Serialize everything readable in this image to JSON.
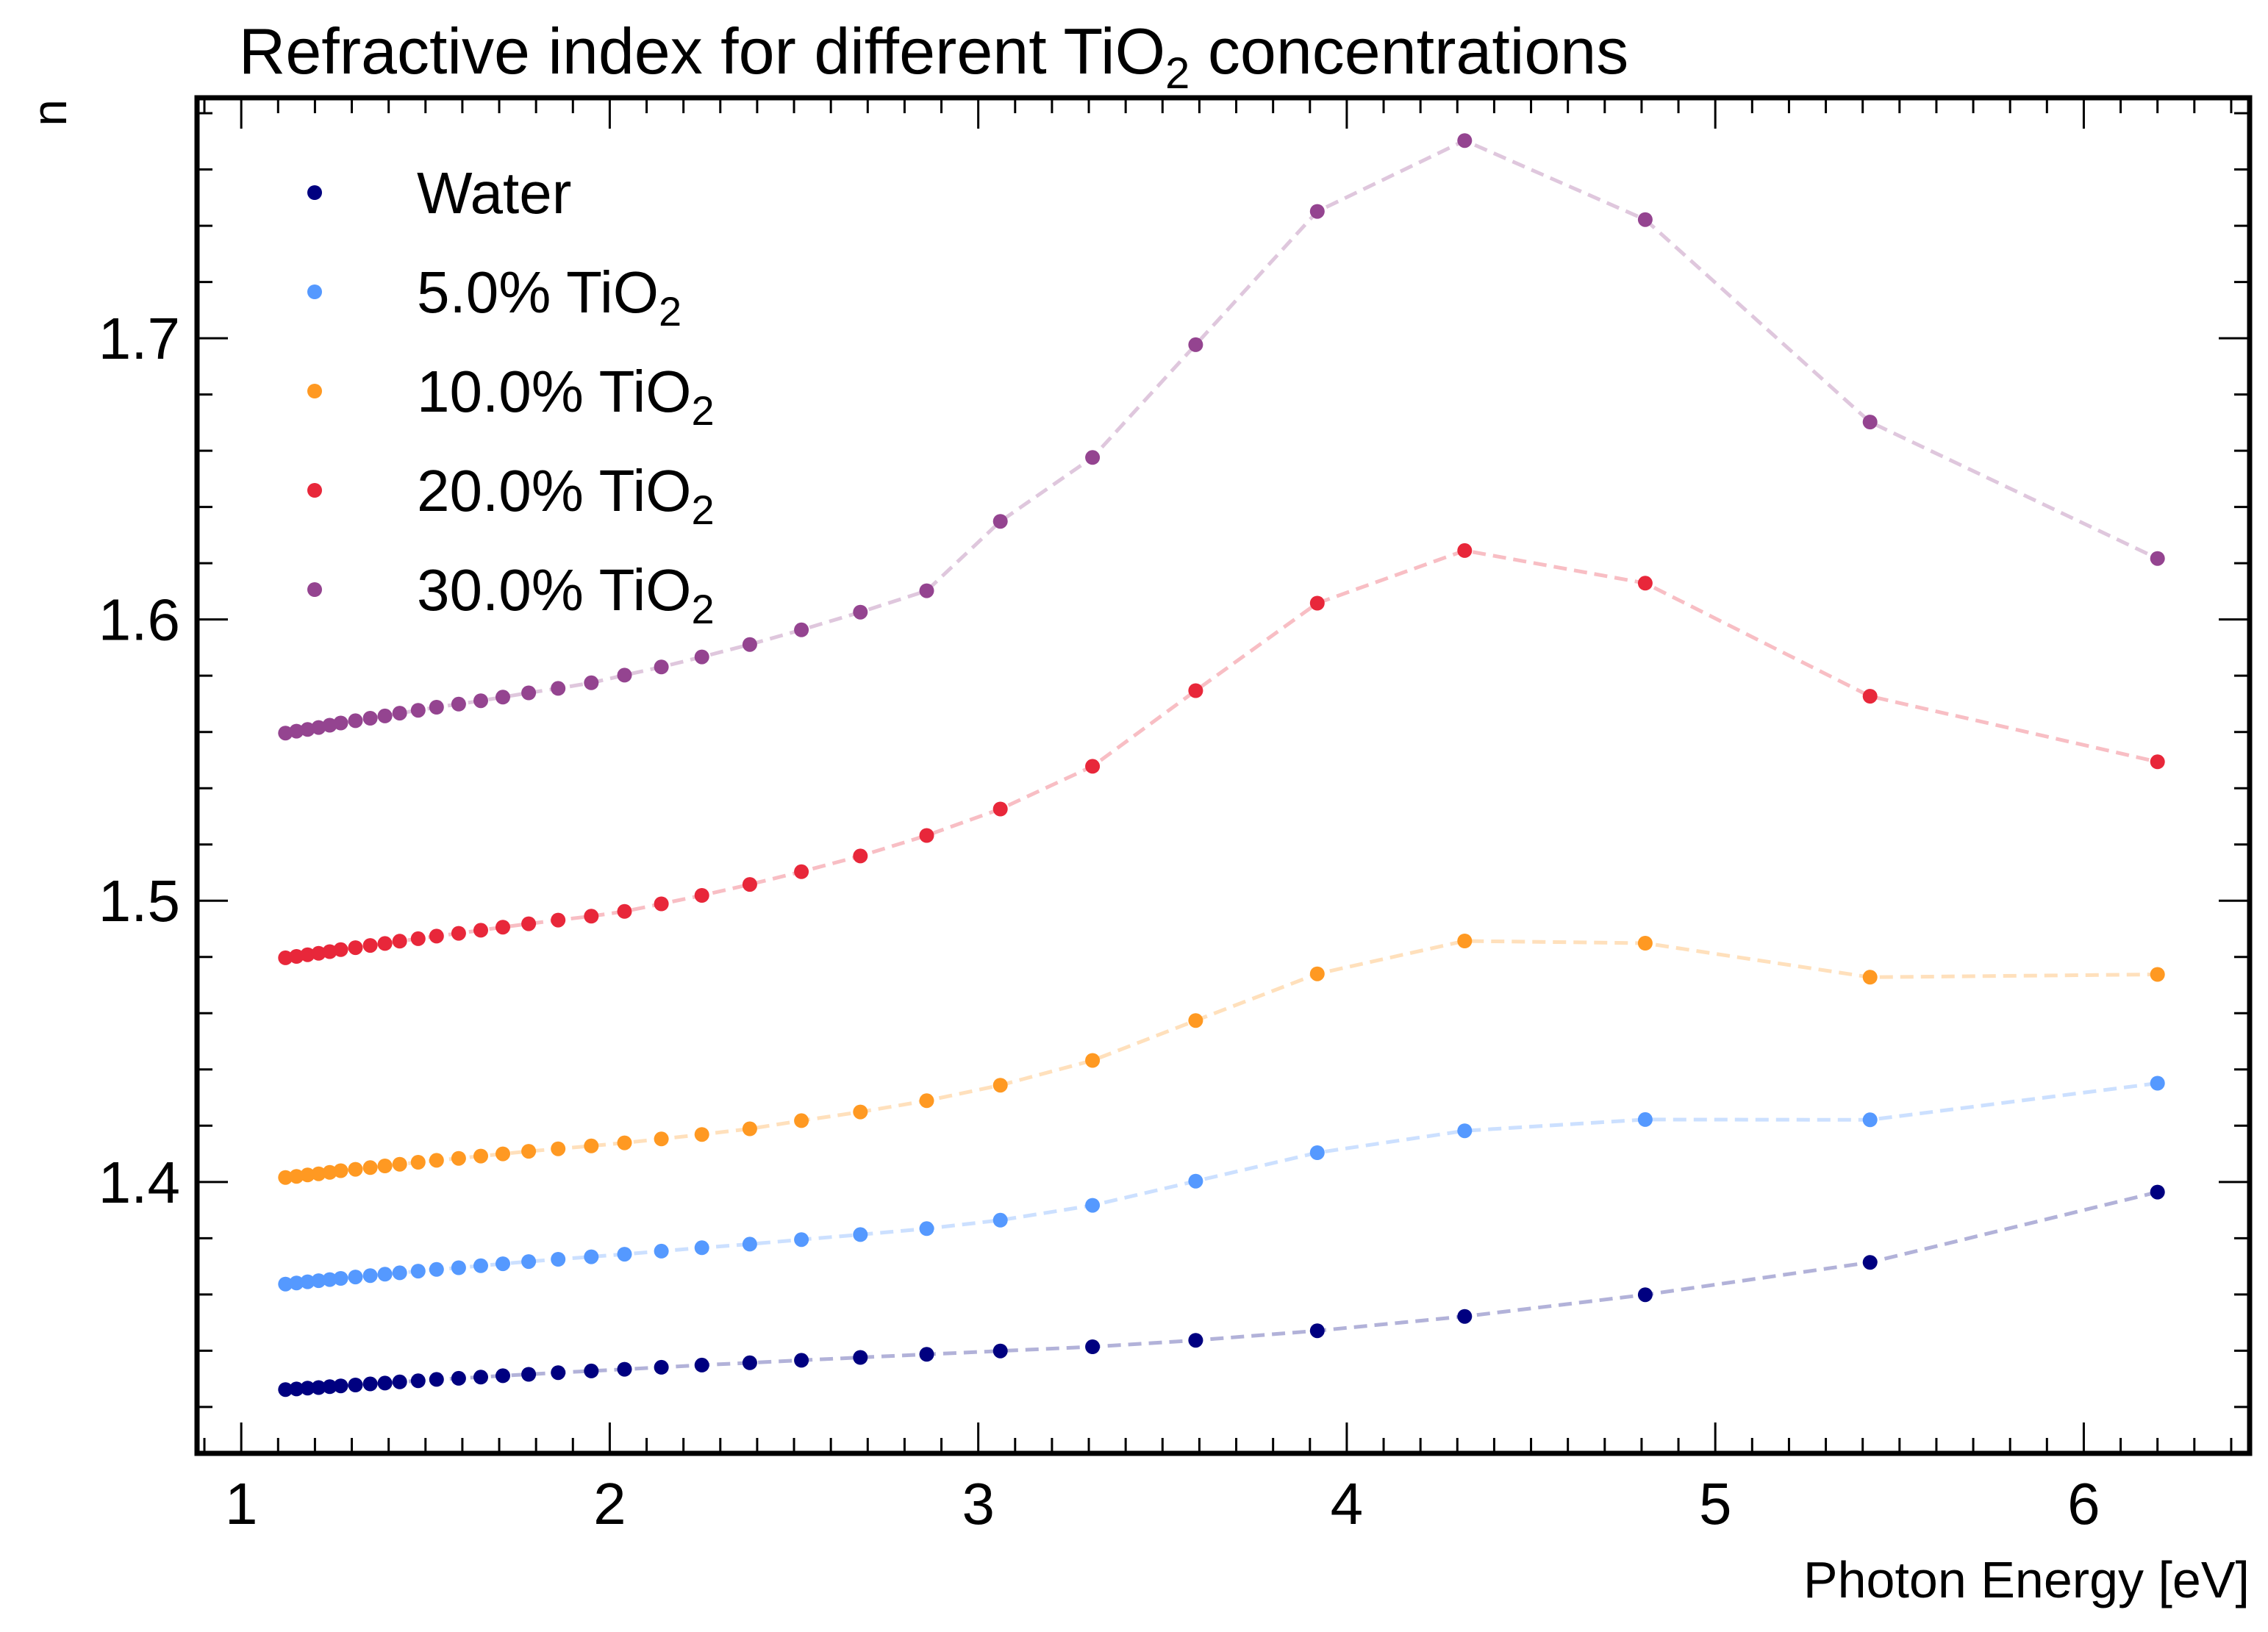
{
  "chart_data": {
    "type": "scatter",
    "title_main": "Refractive index for different TiO",
    "title_sub": "2",
    "title_tail": " concentrations",
    "xlabel": "Photon Energy [eV]",
    "ylabel": "n",
    "xlim": [
      0.88,
      6.45
    ],
    "ylim": [
      1.3035,
      1.7855
    ],
    "xticks": [
      1,
      2,
      3,
      4,
      5,
      6
    ],
    "yticks": [
      1.4,
      1.5,
      1.6,
      1.7
    ],
    "grid": false,
    "legend_position": "top-left",
    "x": [
      1.12,
      1.15,
      1.18,
      1.21,
      1.24,
      1.27,
      1.31,
      1.35,
      1.39,
      1.43,
      1.48,
      1.53,
      1.59,
      1.65,
      1.71,
      1.78,
      1.86,
      1.95,
      2.04,
      2.14,
      2.25,
      2.38,
      2.52,
      2.68,
      2.86,
      3.06,
      3.31,
      3.59,
      3.92,
      4.32,
      4.81,
      5.42,
      6.2
    ],
    "series": [
      {
        "name": "Water",
        "color": "#000080",
        "values": [
          1.3262,
          1.3264,
          1.3267,
          1.3269,
          1.3272,
          1.3275,
          1.3278,
          1.3282,
          1.3285,
          1.3289,
          1.3293,
          1.3298,
          1.3302,
          1.3306,
          1.3311,
          1.3316,
          1.3322,
          1.3328,
          1.3334,
          1.3341,
          1.3349,
          1.3357,
          1.3366,
          1.3376,
          1.3387,
          1.3399,
          1.3414,
          1.3437,
          1.3471,
          1.3522,
          1.3599,
          1.3714,
          1.3964
        ]
      },
      {
        "name": "5.0% TiO",
        "name_sub": "2",
        "color": "#5599ff",
        "values": [
          1.3637,
          1.3641,
          1.3645,
          1.3649,
          1.3653,
          1.3657,
          1.3662,
          1.3667,
          1.3672,
          1.3677,
          1.3683,
          1.3689,
          1.3695,
          1.3702,
          1.3709,
          1.3717,
          1.3725,
          1.3734,
          1.3743,
          1.3754,
          1.3766,
          1.3779,
          1.3795,
          1.3813,
          1.3834,
          1.3864,
          1.3917,
          1.4003,
          1.4104,
          1.4182,
          1.4222,
          1.4221,
          1.4351
        ]
      },
      {
        "name": "10.0% TiO",
        "name_sub": "2",
        "color": "#ff9922",
        "values": [
          1.4016,
          1.402,
          1.4025,
          1.4029,
          1.4034,
          1.404,
          1.4045,
          1.4051,
          1.4057,
          1.4063,
          1.407,
          1.4077,
          1.4084,
          1.4092,
          1.41,
          1.4109,
          1.4118,
          1.4128,
          1.4139,
          1.4153,
          1.4169,
          1.4189,
          1.4218,
          1.4249,
          1.4289,
          1.4344,
          1.4432,
          1.4574,
          1.474,
          1.4857,
          1.4849,
          1.4728,
          1.4738
        ]
      },
      {
        "name": "20.0% TiO",
        "name_sub": "2",
        "color": "#e8273a",
        "values": [
          1.4797,
          1.4802,
          1.4808,
          1.4813,
          1.4819,
          1.4826,
          1.4833,
          1.4841,
          1.4848,
          1.4856,
          1.4865,
          1.4874,
          1.4884,
          1.4895,
          1.4906,
          1.4918,
          1.4931,
          1.4945,
          1.4962,
          1.4989,
          1.5019,
          1.5058,
          1.5103,
          1.5159,
          1.5232,
          1.5326,
          1.5478,
          1.5747,
          1.6058,
          1.6245,
          1.6129,
          1.5727,
          1.5494
        ]
      },
      {
        "name": "30.0% TiO",
        "name_sub": "2",
        "color": "#944490",
        "values": [
          1.5596,
          1.5603,
          1.5609,
          1.5616,
          1.5624,
          1.5632,
          1.564,
          1.5649,
          1.5657,
          1.5667,
          1.5677,
          1.5688,
          1.5699,
          1.5711,
          1.5724,
          1.5739,
          1.5755,
          1.5775,
          1.5802,
          1.5831,
          1.5867,
          1.5911,
          1.5963,
          1.6026,
          1.6102,
          1.6349,
          1.6576,
          1.6977,
          1.7451,
          1.7703,
          1.7422,
          1.6702,
          1.6217
        ]
      }
    ]
  }
}
